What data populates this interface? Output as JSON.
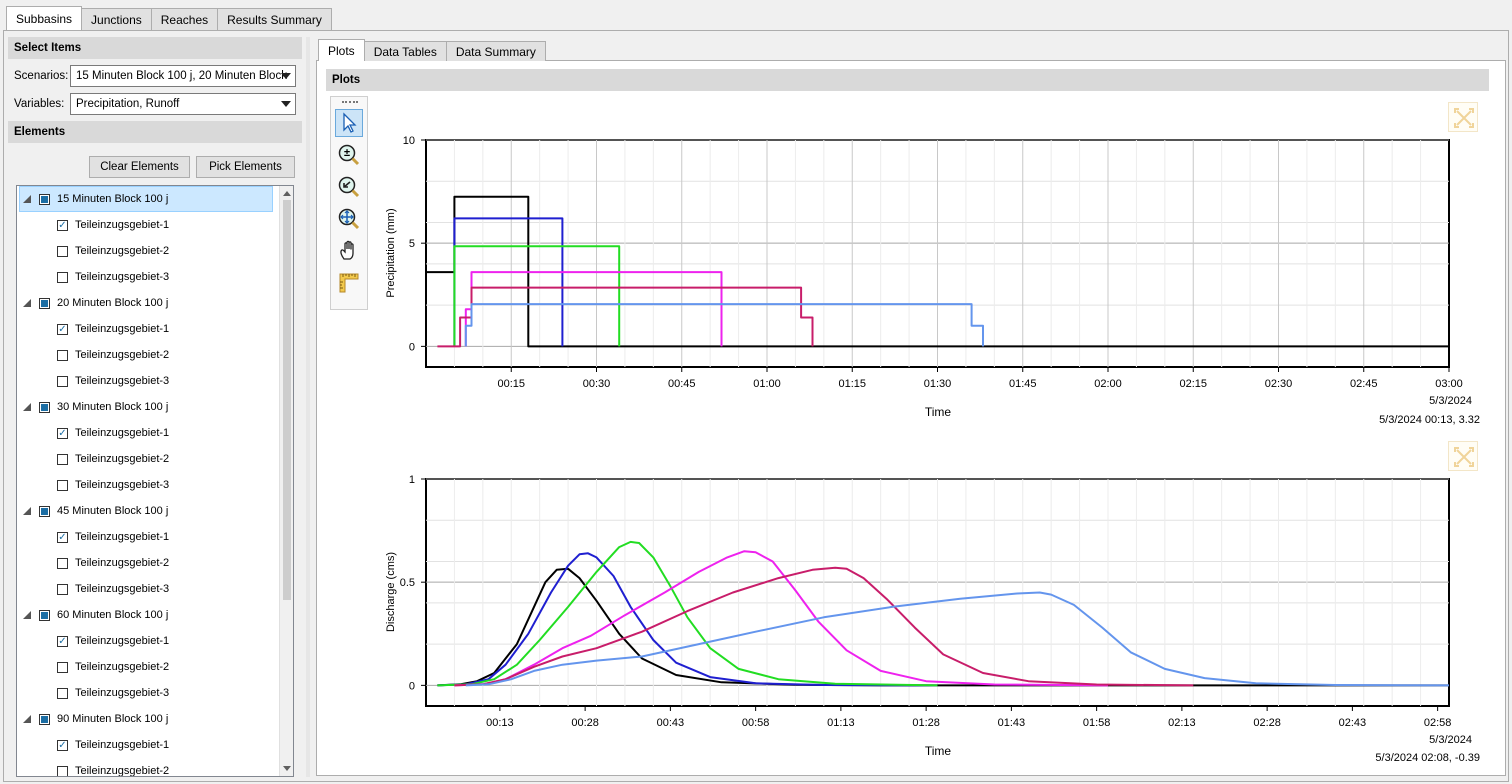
{
  "main_tabs": [
    {
      "label": "Subbasins",
      "active": true
    },
    {
      "label": "Junctions",
      "active": false
    },
    {
      "label": "Reaches",
      "active": false
    },
    {
      "label": "Results Summary",
      "active": false
    }
  ],
  "select_items": {
    "header": "Select Items",
    "scenarios_label": "Scenarios:",
    "scenarios_value": "15 Minuten Block 100 j, 20 Minuten Block",
    "variables_label": "Variables:",
    "variables_value": "Precipitation, Runoff"
  },
  "elements": {
    "header": "Elements",
    "clear_label": "Clear Elements",
    "pick_label": "Pick Elements",
    "scenarios": [
      {
        "name": "15 Minuten Block 100 j",
        "selected": true,
        "items": [
          {
            "name": "Teileinzugsgebiet-1",
            "checked": true
          },
          {
            "name": "Teileinzugsgebiet-2",
            "checked": false
          },
          {
            "name": "Teileinzugsgebiet-3",
            "checked": false
          }
        ]
      },
      {
        "name": "20 Minuten Block 100 j",
        "selected": false,
        "items": [
          {
            "name": "Teileinzugsgebiet-1",
            "checked": true
          },
          {
            "name": "Teileinzugsgebiet-2",
            "checked": false
          },
          {
            "name": "Teileinzugsgebiet-3",
            "checked": false
          }
        ]
      },
      {
        "name": "30 Minuten Block 100 j",
        "selected": false,
        "items": [
          {
            "name": "Teileinzugsgebiet-1",
            "checked": true
          },
          {
            "name": "Teileinzugsgebiet-2",
            "checked": false
          },
          {
            "name": "Teileinzugsgebiet-3",
            "checked": false
          }
        ]
      },
      {
        "name": "45 Minuten Block 100 j",
        "selected": false,
        "items": [
          {
            "name": "Teileinzugsgebiet-1",
            "checked": true
          },
          {
            "name": "Teileinzugsgebiet-2",
            "checked": false
          },
          {
            "name": "Teileinzugsgebiet-3",
            "checked": false
          }
        ]
      },
      {
        "name": "60 Minuten Block 100 j",
        "selected": false,
        "items": [
          {
            "name": "Teileinzugsgebiet-1",
            "checked": true
          },
          {
            "name": "Teileinzugsgebiet-2",
            "checked": false
          },
          {
            "name": "Teileinzugsgebiet-3",
            "checked": false
          }
        ]
      },
      {
        "name": "90 Minuten Block 100 j",
        "selected": false,
        "items": [
          {
            "name": "Teileinzugsgebiet-1",
            "checked": true
          },
          {
            "name": "Teileinzugsgebiet-2",
            "checked": false
          }
        ]
      }
    ]
  },
  "sub_tabs": [
    {
      "label": "Plots",
      "active": true
    },
    {
      "label": "Data Tables",
      "active": false
    },
    {
      "label": "Data Summary",
      "active": false
    }
  ],
  "plots_header": "Plots",
  "tools": [
    "pointer-icon",
    "zoom-in-out-icon",
    "zoom-back-icon",
    "zoom-extent-icon",
    "pan-hand-icon",
    "ruler-icon"
  ],
  "chart_data": [
    {
      "type": "line",
      "xlabel": "Time",
      "ylabel": "Precipitation (mm)",
      "ylim": [
        0,
        10
      ],
      "yticks": [
        "0",
        "5",
        "10"
      ],
      "xtick_labels": [
        "00:15",
        "00:30",
        "00:45",
        "01:00",
        "01:15",
        "01:30",
        "01:45",
        "02:00",
        "02:15",
        "02:30",
        "02:45",
        "03:00"
      ],
      "date_label": "5/3/2024",
      "cursor_readout": "5/3/2024 00:13, 3.32",
      "series": [
        {
          "color": "#000000",
          "points": [
            [
              0,
              3.6
            ],
            [
              5,
              3.6
            ],
            [
              5,
              7.25
            ],
            [
              18,
              7.25
            ],
            [
              18,
              0
            ],
            [
              180,
              0
            ]
          ]
        },
        {
          "color": "#1f1fd0",
          "points": [
            [
              5,
              0
            ],
            [
              5,
              6.2
            ],
            [
              24,
              6.2
            ],
            [
              24,
              0
            ]
          ]
        },
        {
          "color": "#22dd22",
          "points": [
            [
              5,
              0
            ],
            [
              5,
              4.85
            ],
            [
              34,
              4.85
            ],
            [
              34,
              0
            ]
          ]
        },
        {
          "color": "#ee22ee",
          "points": [
            [
              7,
              0
            ],
            [
              7,
              1.8
            ],
            [
              8,
              1.8
            ],
            [
              8,
              3.6
            ],
            [
              52,
              3.6
            ],
            [
              52,
              0
            ]
          ]
        },
        {
          "color": "#c81d6a",
          "points": [
            [
              2,
              0
            ],
            [
              6,
              0
            ],
            [
              6,
              1.4
            ],
            [
              8,
              1.4
            ],
            [
              8,
              2.85
            ],
            [
              66,
              2.85
            ],
            [
              66,
              1.4
            ],
            [
              68,
              1.4
            ],
            [
              68,
              0
            ]
          ]
        },
        {
          "color": "#6495ed",
          "points": [
            [
              7,
              0
            ],
            [
              7,
              1.0
            ],
            [
              8,
              1.0
            ],
            [
              8,
              2.05
            ],
            [
              96,
              2.05
            ],
            [
              96,
              1.0
            ],
            [
              98,
              1.0
            ],
            [
              98,
              0
            ]
          ]
        }
      ]
    },
    {
      "type": "line",
      "xlabel": "Time",
      "ylabel": "Discharge (cms)",
      "ylim": [
        0,
        1
      ],
      "yticks": [
        "0",
        "0.5",
        "1"
      ],
      "xtick_labels": [
        "00:13",
        "00:28",
        "00:43",
        "00:58",
        "01:13",
        "01:28",
        "01:43",
        "01:58",
        "02:13",
        "02:28",
        "02:43",
        "02:58"
      ],
      "date_label": "5/3/2024",
      "cursor_readout": "5/3/2024 02:08, -0.39",
      "series": [
        {
          "color": "#000000",
          "points": [
            [
              2,
              0
            ],
            [
              6,
              0.005
            ],
            [
              9,
              0.02
            ],
            [
              12,
              0.06
            ],
            [
              16,
              0.2
            ],
            [
              19,
              0.38
            ],
            [
              21,
              0.5
            ],
            [
              23,
              0.56
            ],
            [
              25,
              0.565
            ],
            [
              27,
              0.52
            ],
            [
              30,
              0.41
            ],
            [
              34,
              0.25
            ],
            [
              38,
              0.13
            ],
            [
              44,
              0.05
            ],
            [
              52,
              0.015
            ],
            [
              65,
              0.003
            ],
            [
              80,
              0
            ],
            [
              180,
              0
            ]
          ]
        },
        {
          "color": "#1f1fd0",
          "points": [
            [
              2,
              0
            ],
            [
              7,
              0.005
            ],
            [
              11,
              0.03
            ],
            [
              14,
              0.1
            ],
            [
              18,
              0.25
            ],
            [
              22,
              0.45
            ],
            [
              25,
              0.58
            ],
            [
              27,
              0.635
            ],
            [
              28.5,
              0.64
            ],
            [
              30,
              0.62
            ],
            [
              33,
              0.53
            ],
            [
              36,
              0.38
            ],
            [
              40,
              0.22
            ],
            [
              44,
              0.11
            ],
            [
              50,
              0.04
            ],
            [
              58,
              0.01
            ],
            [
              70,
              0.002
            ],
            [
              90,
              0
            ]
          ]
        },
        {
          "color": "#22dd22",
          "points": [
            [
              2,
              0
            ],
            [
              8,
              0.005
            ],
            [
              12,
              0.03
            ],
            [
              16,
              0.1
            ],
            [
              20,
              0.22
            ],
            [
              25,
              0.38
            ],
            [
              30,
              0.55
            ],
            [
              34,
              0.67
            ],
            [
              36,
              0.695
            ],
            [
              37.5,
              0.69
            ],
            [
              40,
              0.62
            ],
            [
              43,
              0.48
            ],
            [
              46,
              0.33
            ],
            [
              50,
              0.18
            ],
            [
              55,
              0.08
            ],
            [
              62,
              0.03
            ],
            [
              72,
              0.008
            ],
            [
              90,
              0
            ]
          ]
        },
        {
          "color": "#ee22ee",
          "points": [
            [
              5,
              0
            ],
            [
              10,
              0.005
            ],
            [
              14,
              0.03
            ],
            [
              19,
              0.1
            ],
            [
              24,
              0.18
            ],
            [
              29,
              0.24
            ],
            [
              35,
              0.34
            ],
            [
              42,
              0.45
            ],
            [
              48,
              0.55
            ],
            [
              53,
              0.62
            ],
            [
              56,
              0.65
            ],
            [
              58,
              0.645
            ],
            [
              61,
              0.6
            ],
            [
              65,
              0.46
            ],
            [
              69,
              0.31
            ],
            [
              74,
              0.17
            ],
            [
              80,
              0.07
            ],
            [
              88,
              0.02
            ],
            [
              100,
              0.004
            ],
            [
              120,
              0
            ]
          ]
        },
        {
          "color": "#c81d6a",
          "points": [
            [
              5,
              0
            ],
            [
              10,
              0.005
            ],
            [
              14,
              0.03
            ],
            [
              19,
              0.09
            ],
            [
              24,
              0.14
            ],
            [
              30,
              0.18
            ],
            [
              38,
              0.26
            ],
            [
              46,
              0.36
            ],
            [
              54,
              0.45
            ],
            [
              62,
              0.52
            ],
            [
              68,
              0.56
            ],
            [
              72,
              0.57
            ],
            [
              74,
              0.565
            ],
            [
              77,
              0.52
            ],
            [
              81,
              0.42
            ],
            [
              86,
              0.28
            ],
            [
              91,
              0.15
            ],
            [
              98,
              0.06
            ],
            [
              106,
              0.02
            ],
            [
              118,
              0.004
            ],
            [
              135,
              0
            ]
          ]
        },
        {
          "color": "#6495ed",
          "points": [
            [
              7,
              0
            ],
            [
              11,
              0.005
            ],
            [
              15,
              0.03
            ],
            [
              19,
              0.07
            ],
            [
              24,
              0.1
            ],
            [
              30,
              0.12
            ],
            [
              38,
              0.14
            ],
            [
              48,
              0.2
            ],
            [
              58,
              0.26
            ],
            [
              70,
              0.33
            ],
            [
              82,
              0.38
            ],
            [
              94,
              0.42
            ],
            [
              104,
              0.445
            ],
            [
              108,
              0.45
            ],
            [
              110,
              0.44
            ],
            [
              114,
              0.39
            ],
            [
              119,
              0.28
            ],
            [
              124,
              0.16
            ],
            [
              130,
              0.08
            ],
            [
              137,
              0.035
            ],
            [
              146,
              0.01
            ],
            [
              160,
              0.002
            ],
            [
              180,
              0
            ]
          ]
        }
      ]
    }
  ]
}
